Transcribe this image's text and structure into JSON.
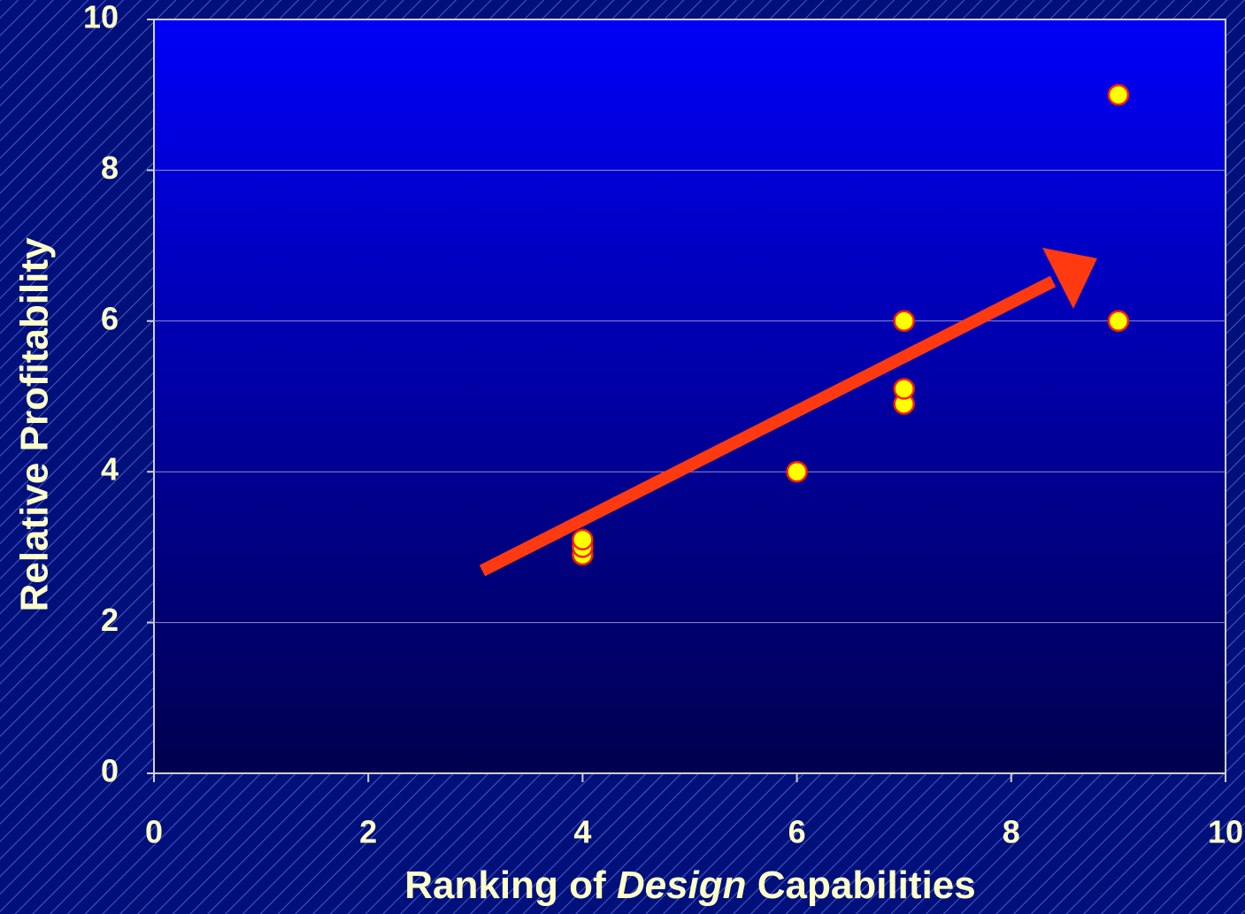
{
  "chart_data": {
    "type": "scatter",
    "xlabel": [
      "Ranking of",
      "Design",
      "Capabilities"
    ],
    "ylabel": "Relative Profitability",
    "x": [
      4,
      4,
      4,
      6,
      7,
      7,
      7,
      9,
      9
    ],
    "values": [
      2.9,
      3.0,
      3.1,
      4,
      4.9,
      5.1,
      6,
      6,
      9
    ],
    "color": "#ffff00",
    "edgecolor": "#ff2000",
    "xlim": [
      0,
      10
    ],
    "xticks": [
      0,
      2,
      4,
      6,
      8,
      10
    ],
    "ylim": [
      0,
      10
    ],
    "yticks": [
      0,
      2,
      4,
      6,
      8,
      10
    ],
    "grid": true
  }
}
